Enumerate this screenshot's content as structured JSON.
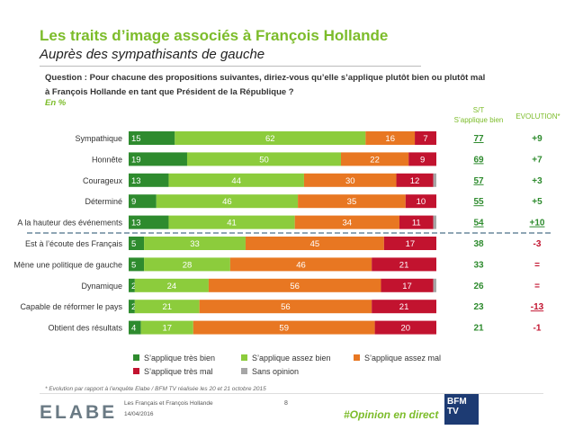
{
  "title": "Les traits d’image associés à François Hollande",
  "subtitle": "Auprès des sympathisants de gauche",
  "question": [
    "Question : Pour chacune des propositions suivantes, diriez-vous qu’elle s’applique plutôt bien ou plutôt mal",
    "à François Hollande en tant que Président de la République ?"
  ],
  "unit": "En %",
  "col_st": [
    "S/T",
    "S’applique bien"
  ],
  "col_evo": "EVOLUTION*",
  "footnote": "* Evolution par rapport à l’enquête Elabe / BFM TV réalisée les 20 et 21 octobre 2015",
  "footer": {
    "logo": "ELABE",
    "source": "Les Français et François Hollande",
    "date": "14/04/2016",
    "page": "8",
    "hashtag": "#Opinion en direct",
    "tv_logo": "BFM TV"
  },
  "colors": {
    "tres_bien": "#2e8b2e",
    "assez_bien": "#8ccc3c",
    "assez_mal": "#e87722",
    "tres_mal": "#c2132f",
    "sans_opinion": "#a6a6a6",
    "accent": "#7cbc2a"
  },
  "chart_data": {
    "type": "bar",
    "orientation": "horizontal",
    "stacked": true,
    "xlim": [
      0,
      100
    ],
    "categories": [
      "Sympathique",
      "Honnête",
      "Courageux",
      "Déterminé",
      "A la hauteur des événements",
      "Est à l’écoute des Français",
      "Mène une politique de gauche",
      "Dynamique",
      "Capable de réformer le pays",
      "Obtient des résultats"
    ],
    "series": [
      {
        "name": "S’applique très bien",
        "values": [
          15,
          19,
          13,
          9,
          13,
          5,
          5,
          2,
          2,
          4
        ]
      },
      {
        "name": "S’applique assez bien",
        "values": [
          62,
          50,
          44,
          46,
          41,
          33,
          28,
          24,
          21,
          17
        ]
      },
      {
        "name": "S’applique assez mal",
        "values": [
          16,
          22,
          30,
          35,
          34,
          45,
          46,
          56,
          56,
          59
        ]
      },
      {
        "name": "S’applique très mal",
        "values": [
          7,
          9,
          12,
          10,
          11,
          17,
          21,
          17,
          21,
          20
        ]
      },
      {
        "name": "Sans opinion",
        "values": [
          0,
          0,
          1,
          0,
          1,
          0,
          0,
          1,
          0,
          0
        ]
      }
    ],
    "st_applique_bien": [
      "77",
      "69",
      "57",
      "55",
      "54",
      "38",
      "33",
      "26",
      "23",
      "21"
    ],
    "evolution": [
      "+9",
      "+7",
      "+3",
      "+5",
      "+10",
      "-3",
      "=",
      "=",
      "-13",
      "-1"
    ],
    "legend_position": "bottom"
  }
}
